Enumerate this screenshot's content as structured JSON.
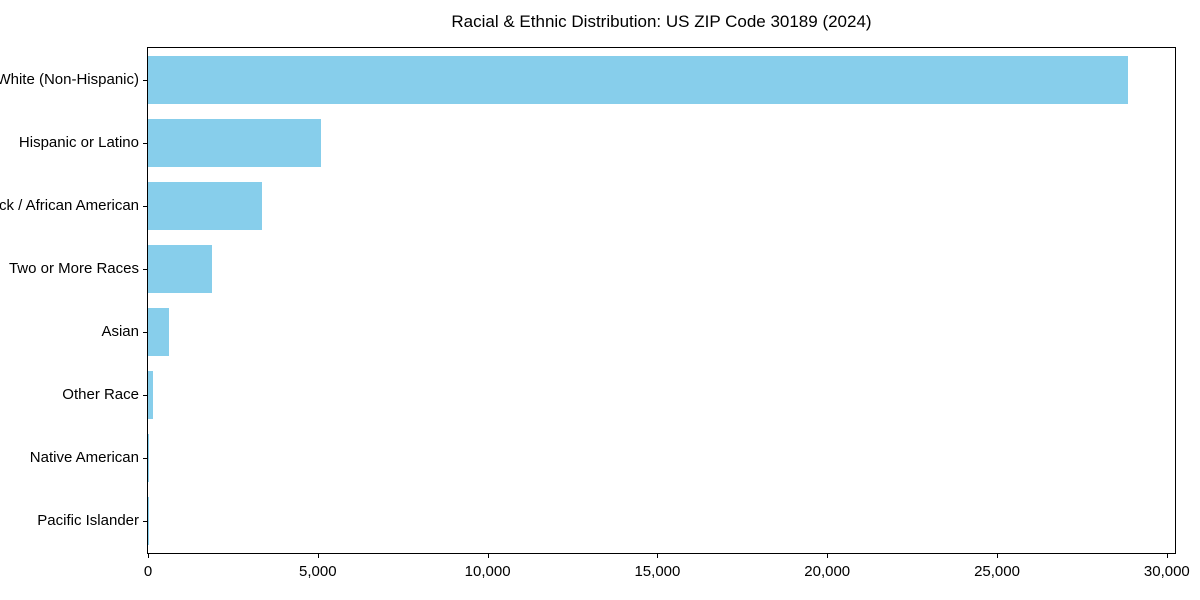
{
  "chart_data": {
    "type": "bar",
    "orientation": "horizontal",
    "title": "Racial & Ethnic Distribution: US ZIP Code 30189 (2024)",
    "categories": [
      "White (Non-Hispanic)",
      "Hispanic or Latino",
      "Black / African American",
      "Two or More Races",
      "Asian",
      "Other Race",
      "Native American",
      "Pacific Islander"
    ],
    "values": [
      28850,
      5090,
      3350,
      1880,
      610,
      150,
      40,
      15
    ],
    "xlabel": "",
    "ylabel": "",
    "xlim": [
      0,
      30240
    ],
    "xticks": [
      0,
      5000,
      10000,
      15000,
      20000,
      25000,
      30000
    ],
    "xtick_labels": [
      "0",
      "5,000",
      "10,000",
      "15,000",
      "20,000",
      "25,000",
      "30,000"
    ],
    "bar_color": "#87CEEB",
    "frame_color": "#000000",
    "grid": false,
    "legend": null
  }
}
